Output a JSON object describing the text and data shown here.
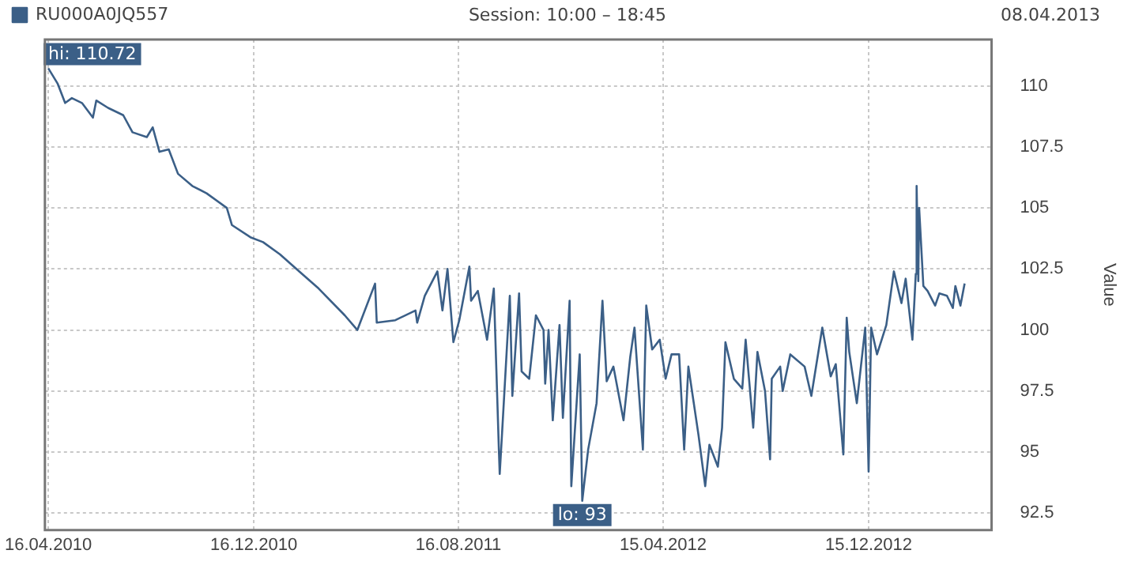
{
  "chart_data": {
    "type": "line",
    "title": "Session: 10:00 – 18:45",
    "ylabel": "Value",
    "legend": "top left",
    "grid": true,
    "marker": "none",
    "line_style": "solid",
    "annotations": [
      {
        "text": "hi: 110.72",
        "x": "2010-04-16",
        "y": 110.72
      },
      {
        "text": "lo: 93",
        "x": "2012-01-10",
        "y": 93
      },
      "08.04.2013"
    ],
    "xlim": [
      "2010-04-12",
      "2013-05-10"
    ],
    "xticks": [
      {
        "value": "2010-04-16",
        "label": "16.04.2010"
      },
      {
        "value": "2010-12-16",
        "label": "16.12.2010"
      },
      {
        "value": "2011-08-16",
        "label": "16.08.2011"
      },
      {
        "value": "2012-04-15",
        "label": "15.04.2012"
      },
      {
        "value": "2012-12-15",
        "label": "15.12.2012"
      }
    ],
    "ylim": [
      91.8,
      111.9
    ],
    "yticks": [
      92.5,
      95,
      97.5,
      100,
      102.5,
      105,
      107.5,
      110
    ],
    "x": [
      "2010-04-16",
      "2010-04-27",
      "2010-05-06",
      "2010-05-14",
      "2010-05-26",
      "2010-06-08",
      "2010-06-12",
      "2010-06-26",
      "2010-07-14",
      "2010-07-25",
      "2010-08-11",
      "2010-08-18",
      "2010-08-26",
      "2010-09-06",
      "2010-09-17",
      "2010-10-04",
      "2010-10-21",
      "2010-11-14",
      "2010-11-20",
      "2010-12-12",
      "2010-12-27",
      "2011-01-16",
      "2011-02-08",
      "2011-03-03",
      "2011-04-03",
      "2011-04-18",
      "2011-05-09",
      "2011-05-11",
      "2011-06-02",
      "2011-06-26",
      "2011-06-28",
      "2011-07-07",
      "2011-07-22",
      "2011-07-28",
      "2011-08-03",
      "2011-08-10",
      "2011-08-17",
      "2011-08-29",
      "2011-08-31",
      "2011-09-08",
      "2011-09-19",
      "2011-09-27",
      "2011-09-30",
      "2011-10-03",
      "2011-10-04",
      "2011-10-07",
      "2011-10-16",
      "2011-10-19",
      "2011-10-27",
      "2011-10-30",
      "2011-11-08",
      "2011-11-16",
      "2011-11-25",
      "2011-11-27",
      "2011-12-01",
      "2011-12-06",
      "2011-12-14",
      "2011-12-18",
      "2011-12-26",
      "2011-12-28",
      "2012-01-07",
      "2012-01-10",
      "2012-01-17",
      "2012-01-27",
      "2012-02-03",
      "2012-02-08",
      "2012-02-16",
      "2012-02-28",
      "2012-03-07",
      "2012-03-12",
      "2012-03-22",
      "2012-03-26",
      "2012-04-02",
      "2012-04-11",
      "2012-04-18",
      "2012-04-25",
      "2012-05-04",
      "2012-05-10",
      "2012-05-15",
      "2012-05-27",
      "2012-06-04",
      "2012-06-09",
      "2012-06-19",
      "2012-06-24",
      "2012-06-28",
      "2012-07-08",
      "2012-07-18",
      "2012-07-22",
      "2012-07-31",
      "2012-08-05",
      "2012-08-14",
      "2012-08-20",
      "2012-08-22",
      "2012-09-01",
      "2012-09-04",
      "2012-09-13",
      "2012-09-30",
      "2012-10-08",
      "2012-10-21",
      "2012-10-31",
      "2012-11-06",
      "2012-11-15",
      "2012-11-19",
      "2012-11-22",
      "2012-12-01",
      "2012-12-11",
      "2012-12-15",
      "2012-12-18",
      "2012-12-25",
      "2013-01-05",
      "2013-01-14",
      "2013-01-23",
      "2013-01-28",
      "2013-02-05",
      "2013-02-09",
      "2013-02-10",
      "2013-02-12",
      "2013-02-13",
      "2013-02-18",
      "2013-02-23",
      "2013-03-04",
      "2013-03-09",
      "2013-03-18",
      "2013-03-25",
      "2013-03-28",
      "2013-04-03",
      "2013-04-08"
    ],
    "series": [
      {
        "name": "RU000A0JQ557",
        "color": "#3b5f87",
        "values": [
          110.72,
          110.1,
          109.3,
          109.5,
          109.3,
          108.7,
          109.4,
          109.1,
          108.8,
          108.1,
          107.9,
          108.3,
          107.3,
          107.4,
          106.4,
          105.9,
          105.6,
          105.0,
          104.3,
          103.8,
          103.6,
          103.1,
          102.4,
          101.7,
          100.6,
          100.0,
          101.9,
          100.3,
          100.4,
          100.8,
          100.3,
          101.4,
          102.4,
          100.8,
          102.5,
          99.5,
          100.4,
          102.6,
          101.2,
          101.6,
          99.6,
          101.7,
          98.4,
          95.1,
          94.1,
          95.9,
          101.4,
          97.3,
          101.5,
          98.3,
          98.0,
          100.6,
          100.0,
          97.8,
          100.0,
          96.3,
          100.2,
          96.4,
          101.2,
          93.6,
          99.0,
          93.0,
          95.1,
          97.0,
          101.2,
          97.9,
          98.5,
          96.3,
          98.9,
          100.1,
          95.1,
          101.0,
          99.2,
          99.6,
          98.0,
          99.0,
          99.0,
          95.1,
          98.5,
          95.7,
          93.6,
          95.3,
          94.4,
          96.0,
          99.5,
          98.0,
          97.6,
          99.6,
          96.0,
          99.1,
          97.5,
          94.7,
          98.0,
          98.5,
          97.5,
          99.0,
          98.5,
          97.3,
          100.1,
          98.1,
          98.6,
          94.9,
          100.5,
          99.1,
          97.0,
          100.1,
          94.2,
          100.1,
          99.0,
          100.2,
          102.4,
          101.1,
          102.1,
          99.6,
          102.3,
          105.9,
          102.0,
          105.0,
          101.8,
          101.6,
          101.0,
          101.5,
          101.4,
          100.9,
          101.8,
          101.0,
          101.9
        ]
      }
    ]
  }
}
